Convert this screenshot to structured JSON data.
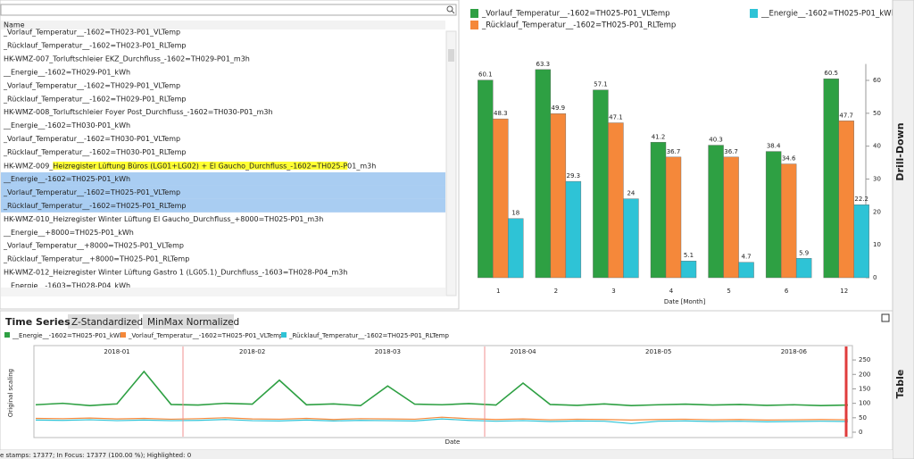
{
  "list": {
    "header": "Name",
    "selected": [
      11,
      12,
      13
    ],
    "items": [
      "_Vorlauf_Temperatur__-1602=TH023-P01_VLTemp",
      "_Rücklauf_Temperatur__-1602=TH023-P01_RLTemp",
      "HK-WMZ-007_Torluftschleier EKZ_Durchfluss_-1602=TH029-P01_m3h",
      "__Energie__-1602=TH029-P01_kWh",
      "_Vorlauf_Temperatur__-1602=TH029-P01_VLTemp",
      "_Rücklauf_Temperatur__-1602=TH029-P01_RLTemp",
      "HK-WMZ-008_Torluftschleier Foyer Post_Durchfluss_-1602=TH030-P01_m3h",
      "__Energie__-1602=TH030-P01_kWh",
      "_Vorlauf_Temperatur__-1602=TH030-P01_VLTemp",
      "_Rücklauf_Temperatur__-1602=TH030-P01_RLTemp",
      [
        "HK-WMZ-009_",
        "Heizregister Lüftung Büros (LG01+LG02) + El Gaucho_Durchfluss_-1602=TH025-P",
        "01_m3h"
      ],
      "__Energie__-1602=TH025-P01_kWh",
      "_Vorlauf_Temperatur__-1602=TH025-P01_VLTemp",
      "_Rücklauf_Temperatur__-1602=TH025-P01_RLTemp",
      "HK-WMZ-010_Heizregister Winter Lüftung El Gaucho_Durchfluss_+8000=TH025-P01_m3h",
      "__Energie__+8000=TH025-P01_kWh",
      "_Vorlauf_Temperatur__+8000=TH025-P01_VLTemp",
      "_Rücklauf_Temperatur__+8000=TH025-P01_RLTemp",
      "HK-WMZ-012_Heizregister Winter Lüftung Gastro 1 (LG05.1)_Durchfluss_-1603=TH028-P04_m3h",
      "__Energie__-1603=TH028-P04_kWh"
    ]
  },
  "chart_data": [
    {
      "type": "bar",
      "x_label": "Date [Month]",
      "categories": [
        "1",
        "2",
        "3",
        "4",
        "5",
        "6",
        "12"
      ],
      "series": [
        {
          "name": "_Vorlauf_Temperatur__-1602=TH025-P01_VLTemp",
          "color": "#2ea043",
          "values": [
            60.1,
            63.3,
            57.1,
            41.2,
            40.3,
            38.4,
            60.5
          ]
        },
        {
          "name": "_Rücklauf_Temperatur__-1602=TH025-P01_RLTemp",
          "color": "#f5883a",
          "values": [
            48.3,
            49.9,
            47.1,
            36.7,
            36.7,
            34.6,
            47.7
          ]
        },
        {
          "name": "__Energie__-1602=TH025-P01_kWh",
          "color": "#2ec3d6",
          "values": [
            18,
            29.3,
            24,
            5.1,
            4.7,
            5.9,
            22.2
          ]
        }
      ],
      "ylim": [
        0,
        65
      ],
      "yticks": [
        0,
        10,
        20,
        30,
        40,
        50,
        60
      ],
      "grid": false
    },
    {
      "type": "line",
      "y_label": "Original scaling",
      "x_label": "Date",
      "categories": [
        null,
        null,
        null,
        "2018-01",
        null,
        null,
        null,
        null,
        "2018-02",
        null,
        null,
        null,
        null,
        "2018-03",
        null,
        null,
        null,
        null,
        "2018-04",
        null,
        null,
        null,
        null,
        "2018-05",
        null,
        null,
        null,
        null,
        "2018-06",
        null,
        null
      ],
      "series": [
        {
          "name": "__Energie__-1602=TH025-P01_kWh",
          "color": "#2ea043",
          "values": [
            95,
            100,
            92,
            98,
            210,
            96,
            94,
            100,
            97,
            180,
            95,
            98,
            92,
            160,
            97,
            95,
            99,
            94,
            170,
            96,
            93,
            98,
            92,
            95,
            97,
            94,
            96,
            93,
            95,
            92,
            94
          ]
        },
        {
          "name": "_Vorlauf_Temperatur__-1602=TH025-P01_VLTemp",
          "color": "#f5883a",
          "values": [
            48,
            47,
            49,
            46,
            48,
            45,
            47,
            50,
            46,
            45,
            48,
            44,
            47,
            46,
            45,
            52,
            47,
            44,
            46,
            43,
            45,
            44,
            42,
            44,
            45,
            43,
            44,
            42,
            43,
            44,
            43
          ]
        },
        {
          "name": "_Rücklauf_Temperatur__-1602=TH025-P01_RLTemp",
          "color": "#2ec3d6",
          "values": [
            42,
            41,
            43,
            40,
            42,
            40,
            41,
            44,
            40,
            39,
            42,
            39,
            41,
            40,
            39,
            46,
            41,
            38,
            40,
            37,
            39,
            38,
            30,
            38,
            39,
            37,
            38,
            36,
            37,
            38,
            37
          ]
        }
      ],
      "ylim": [
        0,
        275
      ],
      "yticks": [
        0,
        50,
        100,
        150,
        200,
        250
      ],
      "grid": false
    }
  ],
  "tabs": [
    "Time Series",
    "Z-Standardized",
    "MinMax Normalized"
  ],
  "side_tabs": [
    "Drill-Down",
    "Table"
  ],
  "status": "e stamps: 17377; In Focus: 17377 (100.00 %); Highlighted: 0"
}
